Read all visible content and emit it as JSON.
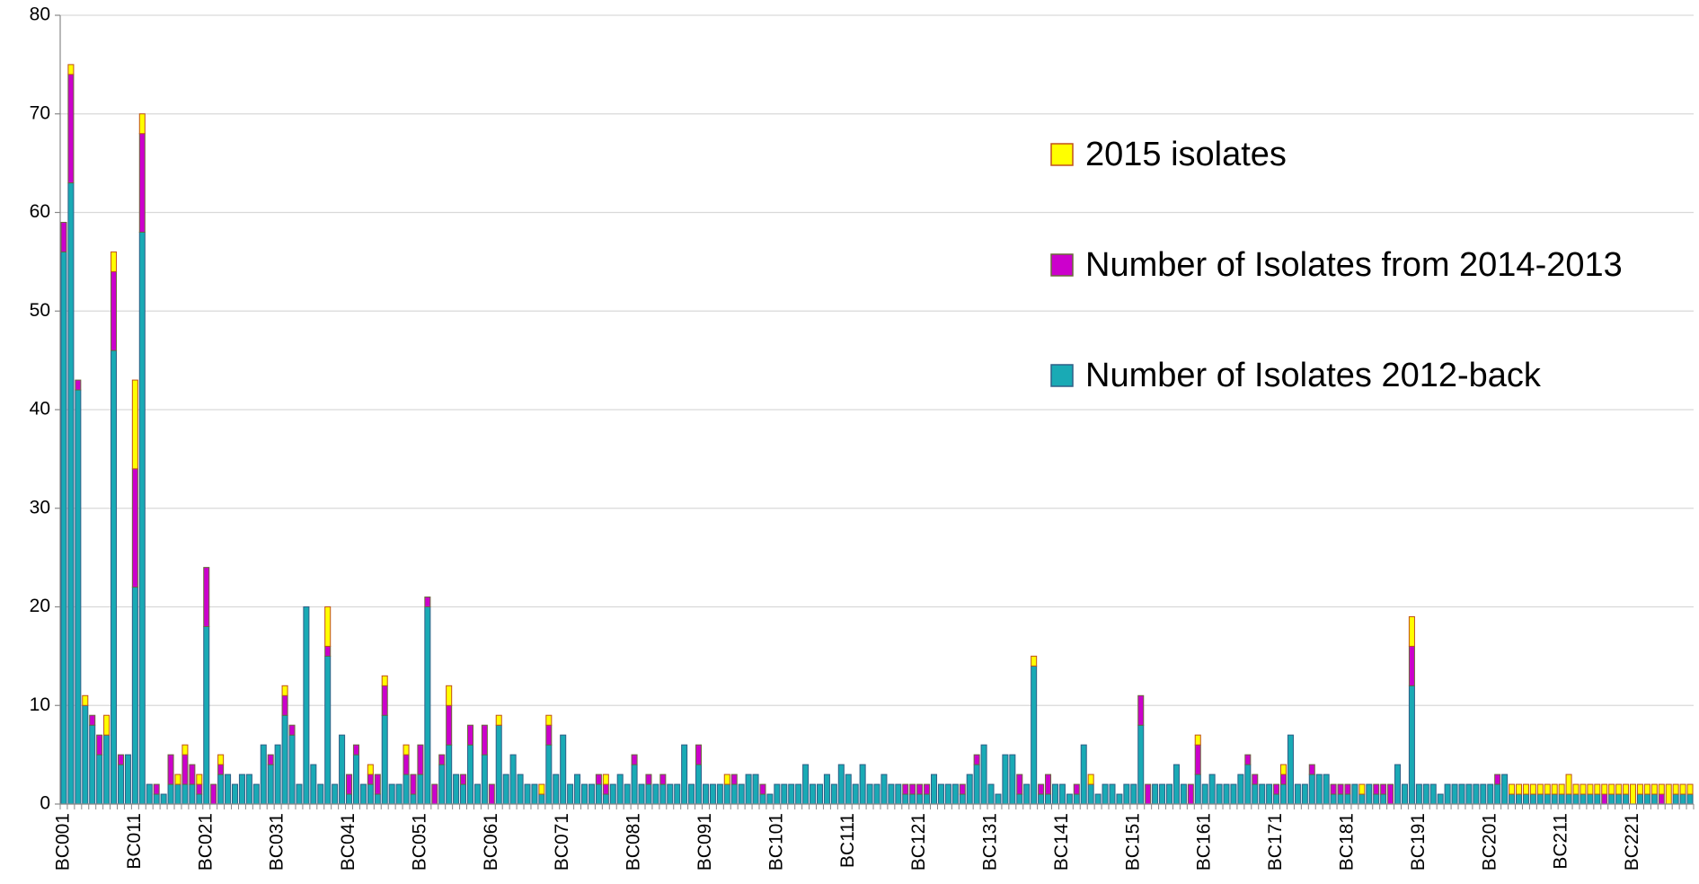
{
  "chart_data": {
    "type": "stacked_bar",
    "categories": [
      "BC001",
      null,
      null,
      null,
      null,
      null,
      null,
      null,
      null,
      null,
      "BC011",
      null,
      null,
      null,
      null,
      null,
      null,
      null,
      null,
      null,
      "BC021",
      null,
      null,
      null,
      null,
      null,
      null,
      null,
      null,
      null,
      "BC031",
      null,
      null,
      null,
      null,
      null,
      null,
      null,
      null,
      null,
      "BC041",
      null,
      null,
      null,
      null,
      null,
      null,
      null,
      null,
      null,
      "BC051",
      null,
      null,
      null,
      null,
      null,
      null,
      null,
      null,
      null,
      "BC061",
      null,
      null,
      null,
      null,
      null,
      null,
      null,
      null,
      null,
      "BC071",
      null,
      null,
      null,
      null,
      null,
      null,
      null,
      null,
      null,
      "BC081",
      null,
      null,
      null,
      null,
      null,
      null,
      null,
      null,
      null,
      "BC091",
      null,
      null,
      null,
      null,
      null,
      null,
      null,
      null,
      null,
      "BC101",
      null,
      null,
      null,
      null,
      null,
      null,
      null,
      null,
      null,
      "BC111",
      null,
      null,
      null,
      null,
      null,
      null,
      null,
      null,
      null,
      "BC121",
      null,
      null,
      null,
      null,
      null,
      null,
      null,
      null,
      null,
      "BC131",
      null,
      null,
      null,
      null,
      null,
      null,
      null,
      null,
      null,
      "BC141",
      null,
      null,
      null,
      null,
      null,
      null,
      null,
      null,
      null,
      "BC151",
      null,
      null,
      null,
      null,
      null,
      null,
      null,
      null,
      null,
      "BC161",
      null,
      null,
      null,
      null,
      null,
      null,
      null,
      null,
      null,
      "BC171",
      null,
      null,
      null,
      null,
      null,
      null,
      null,
      null,
      null,
      "BC181",
      null,
      null,
      null,
      null,
      null,
      null,
      null,
      null,
      null,
      "BC191",
      null,
      null,
      null,
      null,
      null,
      null,
      null,
      null,
      null,
      "BC201",
      null,
      null,
      null,
      null,
      null,
      null,
      null,
      null,
      null,
      "BC211",
      null,
      null,
      null,
      null,
      null,
      null,
      null,
      null,
      null,
      "BC221",
      null,
      null,
      null,
      null,
      null,
      null,
      null,
      null
    ],
    "series": [
      {
        "name": "Number of Isolates 2012-back",
        "color": "#19aab5",
        "stroke": "#2f5f86",
        "values": [
          56,
          63,
          42,
          10,
          8,
          5,
          7,
          46,
          4,
          5,
          22,
          58,
          2,
          1,
          1,
          2,
          2,
          2,
          2,
          1,
          18,
          0,
          3,
          3,
          2,
          3,
          3,
          2,
          6,
          4,
          6,
          9,
          7,
          2,
          20,
          4,
          2,
          15,
          2,
          7,
          1,
          5,
          2,
          2,
          1,
          9,
          2,
          2,
          3,
          1,
          3,
          20,
          0,
          4,
          6,
          3,
          2,
          6,
          2,
          5,
          0,
          8,
          3,
          5,
          3,
          2,
          2,
          1,
          6,
          3,
          7,
          2,
          3,
          2,
          2,
          2,
          1,
          2,
          3,
          2,
          4,
          2,
          2,
          2,
          2,
          2,
          2,
          6,
          2,
          4,
          2,
          2,
          2,
          2,
          2,
          2,
          3,
          3,
          1,
          1,
          2,
          2,
          2,
          2,
          4,
          2,
          2,
          3,
          2,
          4,
          3,
          2,
          4,
          2,
          2,
          3,
          2,
          2,
          1,
          1,
          1,
          1,
          3,
          2,
          2,
          2,
          1,
          3,
          4,
          6,
          2,
          1,
          5,
          5,
          1,
          2,
          14,
          1,
          1,
          2,
          2,
          1,
          1,
          6,
          2,
          1,
          2,
          2,
          1,
          2,
          2,
          8,
          0,
          2,
          2,
          2,
          4,
          2,
          0,
          3,
          2,
          3,
          2,
          2,
          2,
          3,
          4,
          2,
          2,
          2,
          1,
          2,
          7,
          2,
          2,
          3,
          3,
          3,
          1,
          1,
          1,
          2,
          1,
          2,
          1,
          1,
          0,
          4,
          2,
          12,
          2,
          2,
          2,
          1,
          2,
          2,
          2,
          2,
          2,
          2,
          2,
          2,
          3,
          1,
          1,
          1,
          1,
          1,
          1,
          1,
          1,
          1,
          1,
          1,
          1,
          1,
          0,
          1,
          1,
          1,
          0,
          1,
          1,
          1,
          0,
          0,
          1,
          1,
          1
        ]
      },
      {
        "name": "Number of Isolates from 2014-2013",
        "color": "#cc00cc",
        "stroke": "#6a6a3a",
        "values": [
          3,
          11,
          1,
          0,
          1,
          2,
          0,
          8,
          1,
          0,
          12,
          10,
          0,
          1,
          0,
          3,
          0,
          3,
          2,
          1,
          6,
          2,
          1,
          0,
          0,
          0,
          0,
          0,
          0,
          1,
          0,
          2,
          1,
          0,
          0,
          0,
          0,
          1,
          0,
          0,
          2,
          1,
          0,
          1,
          2,
          3,
          0,
          0,
          2,
          2,
          3,
          1,
          2,
          1,
          4,
          0,
          1,
          2,
          0,
          3,
          2,
          0,
          0,
          0,
          0,
          0,
          0,
          0,
          2,
          0,
          0,
          0,
          0,
          0,
          0,
          1,
          1,
          0,
          0,
          0,
          1,
          0,
          1,
          0,
          1,
          0,
          0,
          0,
          0,
          2,
          0,
          0,
          0,
          0,
          1,
          0,
          0,
          0,
          1,
          0,
          0,
          0,
          0,
          0,
          0,
          0,
          0,
          0,
          0,
          0,
          0,
          0,
          0,
          0,
          0,
          0,
          0,
          0,
          1,
          1,
          1,
          1,
          0,
          0,
          0,
          0,
          1,
          0,
          1,
          0,
          0,
          0,
          0,
          0,
          2,
          0,
          0,
          1,
          2,
          0,
          0,
          0,
          1,
          0,
          0,
          0,
          0,
          0,
          0,
          0,
          0,
          3,
          2,
          0,
          0,
          0,
          0,
          0,
          2,
          3,
          0,
          0,
          0,
          0,
          0,
          0,
          1,
          1,
          0,
          0,
          1,
          1,
          0,
          0,
          0,
          1,
          0,
          0,
          1,
          1,
          1,
          0,
          0,
          0,
          1,
          1,
          2,
          0,
          0,
          4,
          0,
          0,
          0,
          0,
          0,
          0,
          0,
          0,
          0,
          0,
          0,
          1,
          0,
          0,
          0,
          0,
          0,
          0,
          0,
          0,
          0,
          0,
          0,
          0,
          0,
          0,
          1,
          0,
          0,
          0,
          0,
          0,
          0,
          0,
          1,
          0,
          0,
          0,
          0
        ]
      },
      {
        "name": "2015 isolates",
        "color": "#ffff00",
        "stroke": "#c0501a",
        "values": [
          0,
          1,
          0,
          1,
          0,
          0,
          2,
          2,
          0,
          0,
          9,
          2,
          0,
          0,
          0,
          0,
          1,
          1,
          0,
          1,
          0,
          0,
          1,
          0,
          0,
          0,
          0,
          0,
          0,
          0,
          0,
          1,
          0,
          0,
          0,
          0,
          0,
          4,
          0,
          0,
          0,
          0,
          0,
          1,
          0,
          1,
          0,
          0,
          1,
          0,
          0,
          0,
          0,
          0,
          2,
          0,
          0,
          0,
          0,
          0,
          0,
          1,
          0,
          0,
          0,
          0,
          0,
          1,
          1,
          0,
          0,
          0,
          0,
          0,
          0,
          0,
          1,
          0,
          0,
          0,
          0,
          0,
          0,
          0,
          0,
          0,
          0,
          0,
          0,
          0,
          0,
          0,
          0,
          1,
          0,
          0,
          0,
          0,
          0,
          0,
          0,
          0,
          0,
          0,
          0,
          0,
          0,
          0,
          0,
          0,
          0,
          0,
          0,
          0,
          0,
          0,
          0,
          0,
          0,
          0,
          0,
          0,
          0,
          0,
          0,
          0,
          0,
          0,
          0,
          0,
          0,
          0,
          0,
          0,
          0,
          0,
          1,
          0,
          0,
          0,
          0,
          0,
          0,
          0,
          1,
          0,
          0,
          0,
          0,
          0,
          0,
          0,
          0,
          0,
          0,
          0,
          0,
          0,
          0,
          1,
          0,
          0,
          0,
          0,
          0,
          0,
          0,
          0,
          0,
          0,
          0,
          1,
          0,
          0,
          0,
          0,
          0,
          0,
          0,
          0,
          0,
          0,
          1,
          0,
          0,
          0,
          0,
          0,
          0,
          3,
          0,
          0,
          0,
          0,
          0,
          0,
          0,
          0,
          0,
          0,
          0,
          0,
          0,
          1,
          1,
          1,
          1,
          1,
          1,
          1,
          1,
          2,
          1,
          1,
          1,
          1,
          1,
          1,
          1,
          1,
          2,
          1,
          1,
          1,
          1,
          2,
          1,
          1,
          1
        ]
      }
    ],
    "ylim": [
      0,
      80
    ],
    "yticks": [
      0,
      10,
      20,
      30,
      40,
      50,
      60,
      70,
      80
    ],
    "grid": true
  }
}
